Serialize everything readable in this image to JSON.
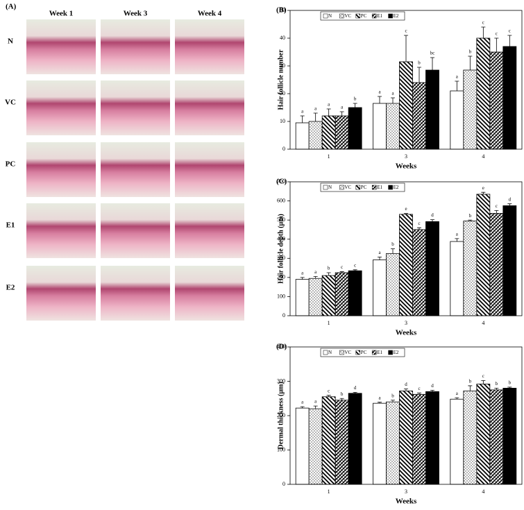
{
  "panel_a": {
    "label": "(A)",
    "columns": [
      "Week 1",
      "Week 3",
      "Week 4"
    ],
    "rows": [
      "N",
      "VC",
      "PC",
      "E1",
      "E2"
    ]
  },
  "chart_data": [
    {
      "type": "bar",
      "panel": "(B)",
      "y_label": "Hair follicle number",
      "x_label": "Weeks",
      "categories": [
        "1",
        "3",
        "4"
      ],
      "ylim": [
        0,
        50
      ],
      "yticks": [
        0,
        10,
        20,
        30,
        40,
        50
      ],
      "series": [
        {
          "name": "N",
          "color": "#ffffff",
          "values": [
            9.5,
            16.5,
            21
          ],
          "errors": [
            2.5,
            2.5,
            3.5
          ],
          "letters": [
            "a",
            "a",
            "a"
          ]
        },
        {
          "name": "VC",
          "color": "#ffffff",
          "pattern": "dots",
          "values": [
            10,
            16.5,
            28.5
          ],
          "errors": [
            3,
            2,
            5
          ],
          "letters": [
            "a",
            "a",
            "b"
          ]
        },
        {
          "name": "PC",
          "color": "#ffffff",
          "pattern": "diagonal",
          "values": [
            12,
            31.5,
            40
          ],
          "errors": [
            2.5,
            9.5,
            4
          ],
          "letters": [
            "a",
            "c",
            "c"
          ]
        },
        {
          "name": "E1",
          "color": "#ffffff",
          "pattern": "crosshatch",
          "values": [
            12,
            24,
            35
          ],
          "errors": [
            1.5,
            5.5,
            5
          ],
          "letters": [
            "a",
            "b",
            "c"
          ]
        },
        {
          "name": "E2",
          "color": "#000000",
          "values": [
            15,
            28.5,
            37
          ],
          "errors": [
            1.5,
            4.5,
            4
          ],
          "letters": [
            "b",
            "bc",
            "c"
          ]
        }
      ]
    },
    {
      "type": "bar",
      "panel": "(C)",
      "y_label": "Hair follicle depth (μm)",
      "x_label": "Weeks",
      "categories": [
        "1",
        "3",
        "4"
      ],
      "ylim": [
        0,
        700
      ],
      "yticks": [
        0,
        100,
        200,
        300,
        400,
        500,
        600,
        700
      ],
      "series": [
        {
          "name": "N",
          "color": "#ffffff",
          "values": [
            190,
            292,
            388
          ],
          "errors": [
            10,
            15,
            15
          ],
          "letters": [
            "a",
            "a",
            "a"
          ]
        },
        {
          "name": "VC",
          "color": "#ffffff",
          "pattern": "dots",
          "values": [
            195,
            325,
            495
          ],
          "errors": [
            10,
            25,
            5
          ],
          "letters": [
            "a",
            "b",
            "b"
          ]
        },
        {
          "name": "PC",
          "color": "#ffffff",
          "pattern": "diagonal",
          "values": [
            210,
            530,
            635
          ],
          "errors": [
            15,
            5,
            10
          ],
          "letters": [
            "b",
            "e",
            "e"
          ]
        },
        {
          "name": "E1",
          "color": "#ffffff",
          "pattern": "crosshatch",
          "values": [
            225,
            450,
            535
          ],
          "errors": [
            5,
            10,
            15
          ],
          "letters": [
            "c",
            "c",
            "c"
          ]
        },
        {
          "name": "E2",
          "color": "#000000",
          "values": [
            235,
            492,
            575
          ],
          "errors": [
            5,
            10,
            10
          ],
          "letters": [
            "c",
            "d",
            "d"
          ]
        }
      ]
    },
    {
      "type": "bar",
      "panel": "(D)",
      "y_label": "Dermal thickness (μm)",
      "x_label": "Weeks",
      "categories": [
        "1",
        "3",
        "4"
      ],
      "ylim": [
        0,
        400
      ],
      "yticks": [
        0,
        100,
        200,
        300,
        400
      ],
      "series": [
        {
          "name": "N",
          "color": "#ffffff",
          "values": [
            222,
            236,
            248
          ],
          "errors": [
            4,
            3,
            4
          ],
          "letters": [
            "a",
            "a",
            "a"
          ]
        },
        {
          "name": "VC",
          "color": "#ffffff",
          "pattern": "dots",
          "values": [
            220,
            240,
            272
          ],
          "errors": [
            8,
            5,
            15
          ],
          "letters": [
            "a",
            "b",
            "b"
          ]
        },
        {
          "name": "PC",
          "color": "#ffffff",
          "pattern": "diagonal",
          "values": [
            255,
            272,
            292
          ],
          "errors": [
            4,
            6,
            10
          ],
          "letters": [
            "c",
            "d",
            "c"
          ]
        },
        {
          "name": "E1",
          "color": "#ffffff",
          "pattern": "crosshatch",
          "values": [
            245,
            262,
            275
          ],
          "errors": [
            5,
            4,
            5
          ],
          "letters": [
            "b",
            "c",
            "b"
          ]
        },
        {
          "name": "E2",
          "color": "#000000",
          "values": [
            265,
            270,
            280
          ],
          "errors": [
            3,
            4,
            3
          ],
          "letters": [
            "d",
            "d",
            "b"
          ]
        }
      ]
    }
  ]
}
